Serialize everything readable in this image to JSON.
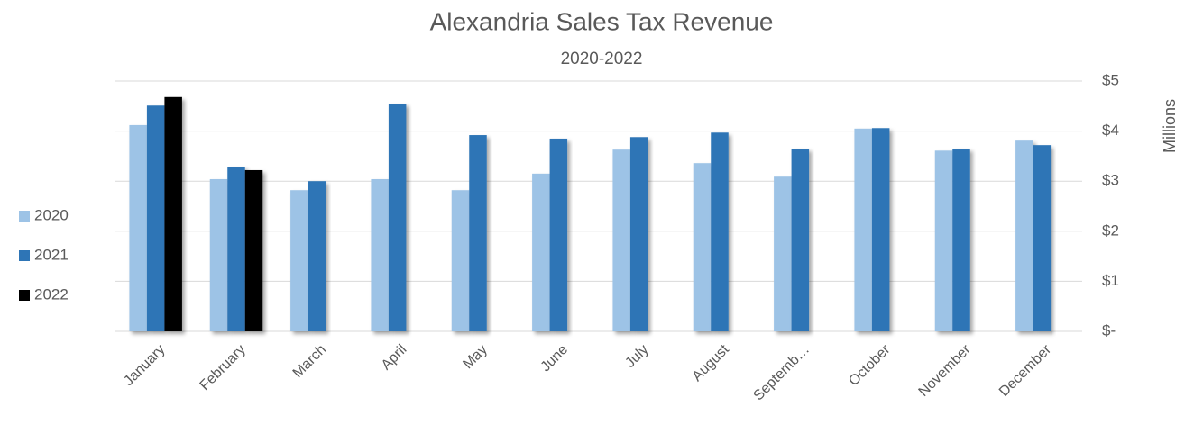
{
  "chart_data": {
    "type": "bar",
    "title": "Alexandria Sales Tax Revenue",
    "subtitle": "2020-2022",
    "y_label": "Millions",
    "categories": [
      "January",
      "February",
      "March",
      "April",
      "May",
      "June",
      "July",
      "August",
      "Septemb…",
      "October",
      "November",
      "December"
    ],
    "series": [
      {
        "name": "2020",
        "color": "#9dc3e6",
        "values": [
          4.12,
          3.04,
          2.82,
          3.04,
          2.82,
          3.15,
          3.63,
          3.36,
          3.09,
          4.05,
          3.61,
          3.81
        ]
      },
      {
        "name": "2021",
        "color": "#2e75b6",
        "values": [
          4.51,
          3.29,
          3.0,
          4.55,
          3.92,
          3.85,
          3.88,
          3.97,
          3.65,
          4.06,
          3.65,
          3.72
        ]
      },
      {
        "name": "2022",
        "color": "#000000",
        "values": [
          4.68,
          3.22,
          null,
          null,
          null,
          null,
          null,
          null,
          null,
          null,
          null,
          null
        ]
      }
    ],
    "ylim": [
      0,
      5
    ],
    "yticks": [
      {
        "value": 0,
        "label": "$-"
      },
      {
        "value": 1,
        "label": "$1"
      },
      {
        "value": 2,
        "label": "$2"
      },
      {
        "value": 3,
        "label": "$3"
      },
      {
        "value": 4,
        "label": "$4"
      },
      {
        "value": 5,
        "label": "$5"
      }
    ],
    "grid": true,
    "legend": "left"
  }
}
